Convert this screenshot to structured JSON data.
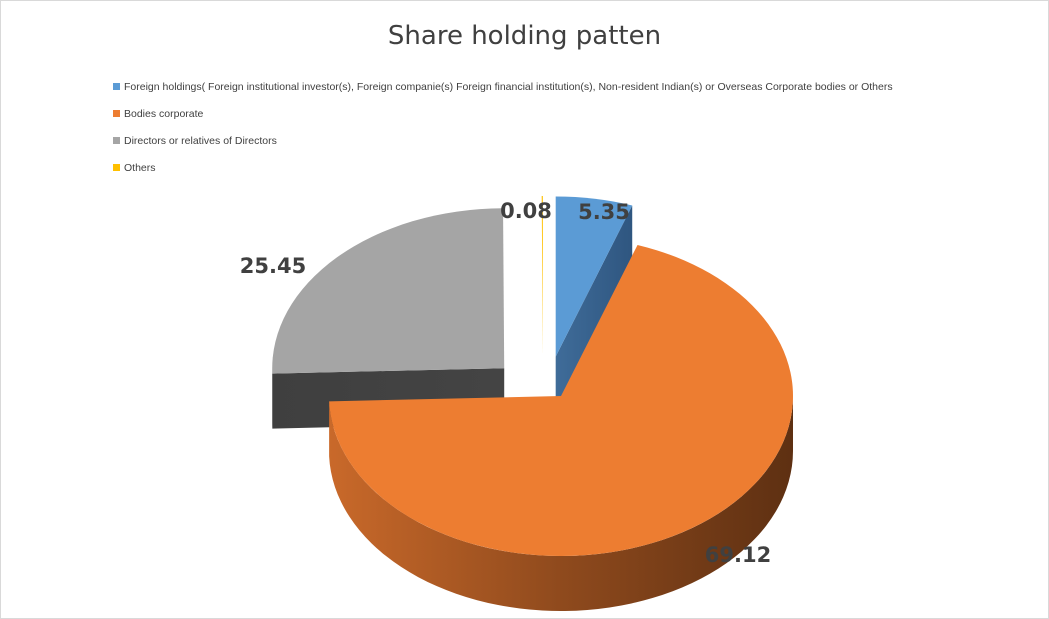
{
  "chart_data": {
    "type": "pie",
    "title": "Share holding patten",
    "legend_position": "top-left",
    "series": [
      {
        "name": "Foreign holdings( Foreign institutional  investor(s), Foreign companie(s) Foreign financial institution(s), Non-resident Indian(s) or Overseas Corporate  bodies  or Others",
        "value": 5.35,
        "label": "5.35",
        "color": "#5b9bd5"
      },
      {
        "name": "Bodies corporate",
        "value": 69.12,
        "label": "69.12",
        "color": "#ed7d31"
      },
      {
        "name": "Directors or  relatives of Directors",
        "value": 25.45,
        "label": "25.45",
        "color": "#a5a5a5"
      },
      {
        "name": "Others",
        "value": 0.08,
        "label": "0.08",
        "color": "#ffc000"
      }
    ]
  }
}
